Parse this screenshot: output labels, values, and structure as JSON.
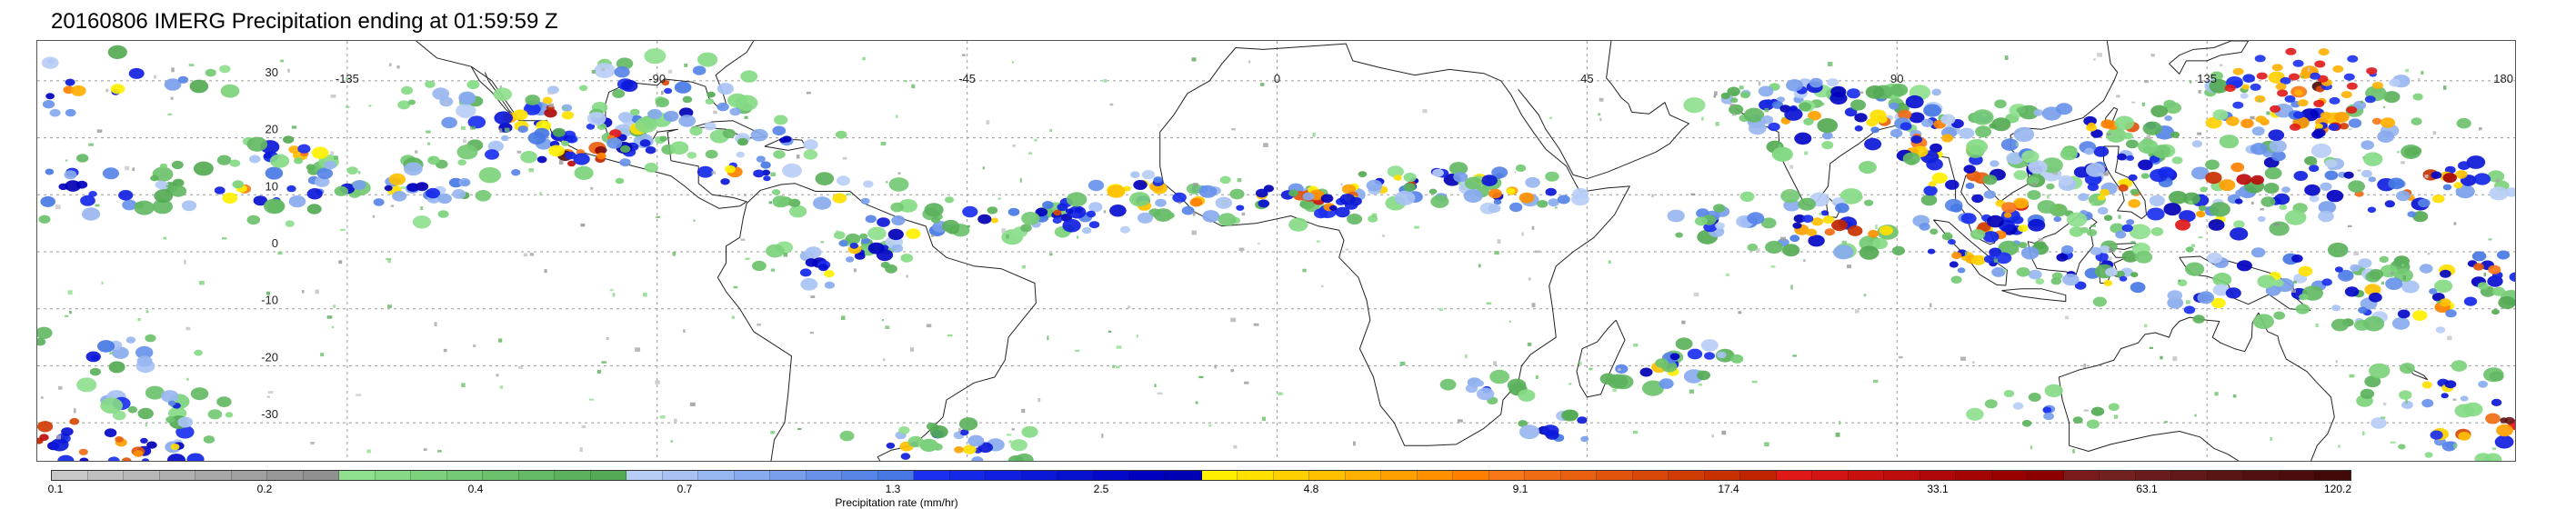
{
  "title": "20160806 IMERG Precipitation ending at 01:59:59 Z",
  "map": {
    "lat_ticks": [
      "30",
      "20",
      "10",
      "0",
      "-10",
      "-20",
      "-30"
    ],
    "lon_ticks": [
      "-135",
      "-90",
      "-45",
      "0",
      "45",
      "90",
      "135",
      "180"
    ],
    "gridline_color": "#9a9a9a",
    "coastline_color": "#222222"
  },
  "colorbar": {
    "label": "Precipitation rate (mm/hr)",
    "tick_labels": [
      "0.1",
      "0.2",
      "0.4",
      "0.7",
      "1.3",
      "2.5",
      "4.8",
      "9.1",
      "17.4",
      "33.1",
      "63.1",
      "120.2"
    ],
    "colors": [
      "#c8c8c8",
      "#c0c0c0",
      "#b8b8b8",
      "#b0b0b0",
      "#a8a8a8",
      "#a0a0a0",
      "#989898",
      "#909090",
      "#8fe08f",
      "#86da86",
      "#7cd27c",
      "#74ca74",
      "#6cc26c",
      "#64ba64",
      "#5cb25c",
      "#54aa54",
      "#b8cdf5",
      "#a8c2f3",
      "#98b6f0",
      "#88aaee",
      "#789eec",
      "#6892ea",
      "#5884e8",
      "#4878e4",
      "#1a2ff0",
      "#1428e8",
      "#1020e0",
      "#0c18d8",
      "#0810d0",
      "#0408c8",
      "#0000c0",
      "#0000b4",
      "#fff000",
      "#ffe000",
      "#ffd000",
      "#ffc000",
      "#ffb000",
      "#ffa000",
      "#ff9000",
      "#ff8000",
      "#f87818",
      "#f06c14",
      "#e86010",
      "#e0540c",
      "#d84808",
      "#d03c04",
      "#c83000",
      "#c02400",
      "#e01818",
      "#d41414",
      "#c81010",
      "#bc0c0c",
      "#b00808",
      "#a40404",
      "#980000",
      "#8c0000",
      "#7a1a1a",
      "#722020",
      "#6a1c1c",
      "#621818",
      "#5a1414",
      "#521010",
      "#4a0c0c",
      "#420808"
    ]
  }
}
